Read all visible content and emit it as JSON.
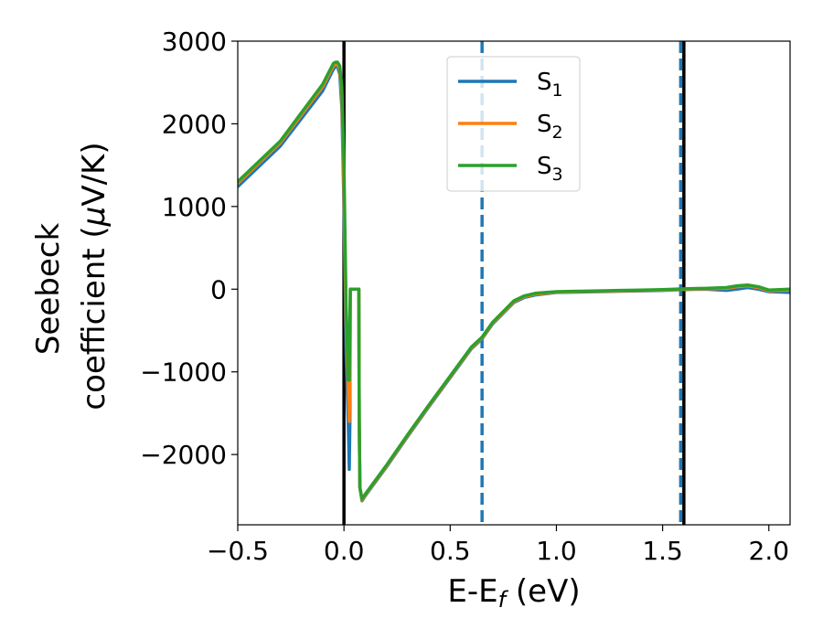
{
  "chart_data": {
    "type": "line",
    "xlabel_main": "E-E",
    "xlabel_sub": "f",
    "xlabel_unit": " (eV)",
    "ylabel_line1": "Seebeck",
    "ylabel_line2_pre": "coefficient  (",
    "ylabel_line2_greek": "μ",
    "ylabel_line2_post": "V/K)",
    "xlim": [
      -0.5,
      2.1
    ],
    "ylim": [
      -2850,
      3000
    ],
    "xticks": [
      {
        "v": -0.5,
        "label": "−0.5"
      },
      {
        "v": 0.0,
        "label": "0.0"
      },
      {
        "v": 0.5,
        "label": "0.5"
      },
      {
        "v": 1.0,
        "label": "1.0"
      },
      {
        "v": 1.5,
        "label": "1.5"
      },
      {
        "v": 2.0,
        "label": "2.0"
      }
    ],
    "yticks": [
      {
        "v": 3000,
        "label": "3000"
      },
      {
        "v": 2000,
        "label": "2000"
      },
      {
        "v": 1000,
        "label": "1000"
      },
      {
        "v": 0,
        "label": "0"
      },
      {
        "v": -1000,
        "label": "−1000"
      },
      {
        "v": -2000,
        "label": "−2000"
      }
    ],
    "vlines": [
      {
        "x": 0.0,
        "style": "solid",
        "color": "#000000"
      },
      {
        "x": 1.6,
        "style": "solid",
        "color": "#000000"
      },
      {
        "x": 0.65,
        "style": "dashed",
        "color": "#1f77b4"
      },
      {
        "x": 1.585,
        "style": "dashed",
        "color": "#1f77b4"
      }
    ],
    "legend_position": "upper-center",
    "series": [
      {
        "name": "S",
        "sub": "1",
        "color": "#1f77b4",
        "points": [
          [
            -0.5,
            1240
          ],
          [
            -0.3,
            1730
          ],
          [
            -0.1,
            2400
          ],
          [
            -0.05,
            2660
          ],
          [
            -0.04,
            2690
          ],
          [
            -0.03,
            2690
          ],
          [
            -0.02,
            2600
          ],
          [
            -0.01,
            2200
          ],
          [
            0.0,
            1000
          ],
          [
            0.01,
            -800
          ],
          [
            0.02,
            -1600
          ],
          [
            0.025,
            -2180
          ],
          [
            0.028,
            -1600
          ],
          [
            0.03,
            0
          ],
          [
            0.07,
            0
          ],
          [
            0.072,
            -1600
          ],
          [
            0.075,
            -2400
          ],
          [
            0.085,
            -2560
          ],
          [
            0.1,
            -2500
          ],
          [
            0.2,
            -2150
          ],
          [
            0.3,
            -1780
          ],
          [
            0.4,
            -1420
          ],
          [
            0.5,
            -1070
          ],
          [
            0.6,
            -720
          ],
          [
            0.65,
            -600
          ],
          [
            0.7,
            -420
          ],
          [
            0.8,
            -160
          ],
          [
            0.85,
            -100
          ],
          [
            0.9,
            -70
          ],
          [
            1.0,
            -40
          ],
          [
            1.1,
            -35
          ],
          [
            1.2,
            -30
          ],
          [
            1.3,
            -25
          ],
          [
            1.4,
            -20
          ],
          [
            1.5,
            -15
          ],
          [
            1.6,
            -5
          ],
          [
            1.7,
            0
          ],
          [
            1.8,
            -15
          ],
          [
            1.85,
            0
          ],
          [
            1.9,
            20
          ],
          [
            1.95,
            0
          ],
          [
            2.0,
            -30
          ],
          [
            2.1,
            -40
          ]
        ]
      },
      {
        "name": "S",
        "sub": "2",
        "color": "#ff7f0e",
        "points": [
          [
            -0.5,
            1280
          ],
          [
            -0.3,
            1770
          ],
          [
            -0.1,
            2450
          ],
          [
            -0.05,
            2700
          ],
          [
            -0.04,
            2720
          ],
          [
            -0.03,
            2720
          ],
          [
            -0.02,
            2650
          ],
          [
            -0.01,
            2350
          ],
          [
            0.0,
            1200
          ],
          [
            0.01,
            -400
          ],
          [
            0.02,
            -1200
          ],
          [
            0.025,
            -1600
          ],
          [
            0.028,
            -1150
          ],
          [
            0.03,
            0
          ],
          [
            0.07,
            0
          ],
          [
            0.072,
            -1600
          ],
          [
            0.075,
            -2400
          ],
          [
            0.085,
            -2550
          ],
          [
            0.1,
            -2490
          ],
          [
            0.2,
            -2140
          ],
          [
            0.3,
            -1770
          ],
          [
            0.4,
            -1410
          ],
          [
            0.5,
            -1060
          ],
          [
            0.6,
            -710
          ],
          [
            0.65,
            -590
          ],
          [
            0.7,
            -410
          ],
          [
            0.8,
            -150
          ],
          [
            0.85,
            -90
          ],
          [
            0.9,
            -60
          ],
          [
            1.0,
            -35
          ],
          [
            1.1,
            -30
          ],
          [
            1.2,
            -25
          ],
          [
            1.3,
            -20
          ],
          [
            1.4,
            -15
          ],
          [
            1.5,
            -10
          ],
          [
            1.6,
            0
          ],
          [
            1.7,
            5
          ],
          [
            1.8,
            10
          ],
          [
            1.85,
            30
          ],
          [
            1.9,
            40
          ],
          [
            1.95,
            20
          ],
          [
            2.0,
            -20
          ],
          [
            2.1,
            -10
          ]
        ]
      },
      {
        "name": "S",
        "sub": "3",
        "color": "#2ca02c",
        "points": [
          [
            -0.5,
            1300
          ],
          [
            -0.3,
            1790
          ],
          [
            -0.1,
            2480
          ],
          [
            -0.05,
            2730
          ],
          [
            -0.04,
            2745
          ],
          [
            -0.03,
            2745
          ],
          [
            -0.02,
            2700
          ],
          [
            -0.01,
            2450
          ],
          [
            0.0,
            1500
          ],
          [
            0.01,
            -200
          ],
          [
            0.02,
            -1100
          ],
          [
            0.025,
            -1100
          ],
          [
            0.028,
            -300
          ],
          [
            0.03,
            0
          ],
          [
            0.07,
            0
          ],
          [
            0.072,
            -1600
          ],
          [
            0.075,
            -2400
          ],
          [
            0.085,
            -2540
          ],
          [
            0.1,
            -2480
          ],
          [
            0.2,
            -2130
          ],
          [
            0.3,
            -1760
          ],
          [
            0.4,
            -1400
          ],
          [
            0.5,
            -1050
          ],
          [
            0.6,
            -700
          ],
          [
            0.65,
            -580
          ],
          [
            0.7,
            -400
          ],
          [
            0.8,
            -140
          ],
          [
            0.85,
            -80
          ],
          [
            0.9,
            -50
          ],
          [
            1.0,
            -30
          ],
          [
            1.1,
            -25
          ],
          [
            1.2,
            -20
          ],
          [
            1.3,
            -15
          ],
          [
            1.4,
            -10
          ],
          [
            1.5,
            -5
          ],
          [
            1.6,
            5
          ],
          [
            1.7,
            10
          ],
          [
            1.8,
            20
          ],
          [
            1.85,
            40
          ],
          [
            1.9,
            50
          ],
          [
            1.95,
            30
          ],
          [
            2.0,
            -10
          ],
          [
            2.1,
            0
          ]
        ]
      }
    ]
  }
}
